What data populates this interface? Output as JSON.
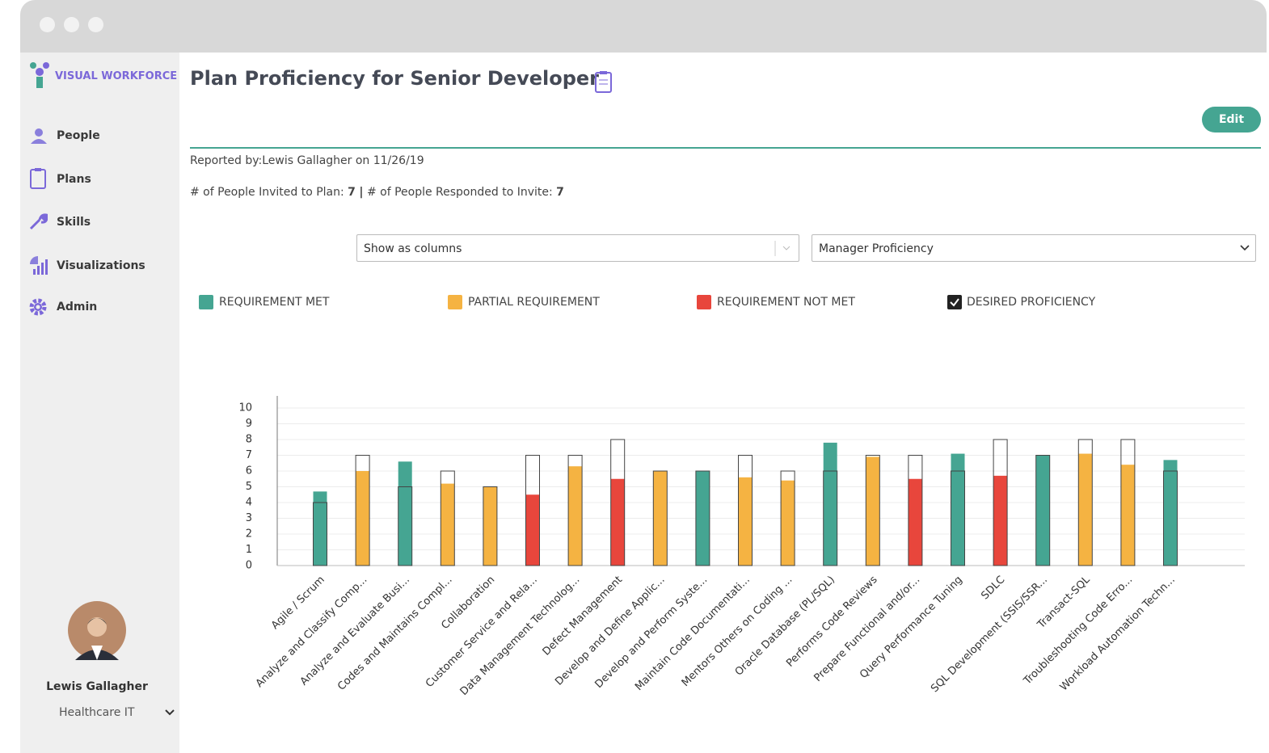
{
  "sidebar": {
    "brand": "VISUAL WORKFORCE",
    "nav": [
      "People",
      "Plans",
      "Skills",
      "Visualizations",
      "Admin"
    ],
    "user": {
      "name": "Lewis Gallagher",
      "org": "Healthcare IT"
    }
  },
  "header": {
    "title": "Plan Proficiency for Senior Developer",
    "button": "Edit",
    "reported": "Reported by:Lewis Gallagher on 11/26/19",
    "invited_label": "# of People Invited to Plan:",
    "invited": 7,
    "separator": "|",
    "responded_label": "# of People Responded to Invite:",
    "responded": 7
  },
  "controls": {
    "view": "Show as columns"
  },
  "chart_data": {
    "type": "bar",
    "categories": [
      "Agile / Scrum",
      "Analyze and Classify Comp...",
      "Analyze and Evaluate Busi...",
      "Codes and Maintains Compl...",
      "Collaboration",
      "Customer Service and Rela...",
      "Data Management Technolog...",
      "Defect Management",
      "Develop and Define Applic...",
      "Develop and Perform Syste...",
      "Maintain Code Documentati...",
      "Mentors Others on Coding ...",
      "Oracle Database (PL/SQL)",
      "Performs Code Reviews",
      "Prepare Functional and/or...",
      "Query Performance Tuning",
      "SDLC",
      "SQL Development (SSIS/SSR...",
      "Transact-SQL",
      "Troubleshooting Code Erro...",
      "Workload Automation Techn..."
    ],
    "series": [
      {
        "name": "Manager Proficiency",
        "values": [
          4.7,
          6,
          6.6,
          5.2,
          5,
          4.5,
          6.3,
          5.5,
          6,
          6,
          5.6,
          5.4,
          7.8,
          6.9,
          5.5,
          7.1,
          5.7,
          7,
          7.1,
          6.4,
          6.7
        ],
        "colors": [
          "#45a592",
          "#f5b342",
          "#45a592",
          "#f5b342",
          "#f5b342",
          "#e8463c",
          "#f5b342",
          "#e8463c",
          "#f5b342",
          "#45a592",
          "#f5b342",
          "#f5b342",
          "#45a592",
          "#f5b342",
          "#e8463c",
          "#45a592",
          "#e8463c",
          "#45a592",
          "#f5b342",
          "#f5b342",
          "#45a592"
        ]
      },
      {
        "name": "DESIRED PROFICIENCY",
        "color": "#444444",
        "values": [
          4,
          7,
          5,
          6,
          5,
          7,
          7,
          8,
          6,
          6,
          7,
          6,
          6,
          7,
          7,
          6,
          8,
          7,
          8,
          8,
          6
        ]
      }
    ],
    "legend": [
      {
        "label": "REQUIREMENT MET",
        "color": "#45a592"
      },
      {
        "label": "PARTIAL REQUIREMENT",
        "color": "#f5b342"
      },
      {
        "label": "REQUIREMENT NOT MET",
        "color": "#e8463c"
      }
    ],
    "ylim": [
      0,
      10
    ],
    "yticks": [
      0,
      1,
      2,
      3,
      4,
      5,
      6,
      7,
      8,
      9,
      10
    ],
    "grid": true
  }
}
